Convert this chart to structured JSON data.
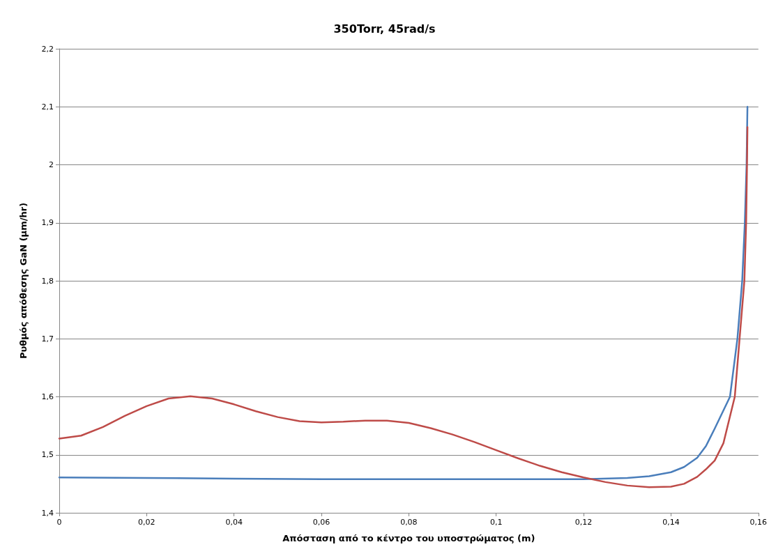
{
  "chart_data": {
    "type": "line",
    "title": "350Torr, 45rad/s",
    "xlabel": "Απόσταση από το κέντρο του υποστρώματος (m)",
    "ylabel": "Ρυθμός απόθεσης GaN (μm/hr)",
    "xlim": [
      0,
      0.16
    ],
    "ylim": [
      1.4,
      2.2
    ],
    "xticks": [
      0,
      {
        "value": 0.02,
        "label": "0,02"
      },
      {
        "value": 0.04,
        "label": "0,04"
      },
      {
        "value": 0.06,
        "label": "0,06"
      },
      {
        "value": 0.08,
        "label": "0,08"
      },
      {
        "value": 0.1,
        "label": "0,1"
      },
      {
        "value": 0.12,
        "label": "0,12"
      },
      {
        "value": 0.14,
        "label": "0,14"
      },
      {
        "value": 0.16,
        "label": "0,16"
      }
    ],
    "yticks": [
      {
        "value": 1.4,
        "label": "1,4"
      },
      {
        "value": 1.5,
        "label": "1,5"
      },
      {
        "value": 1.6,
        "label": "1,6"
      },
      {
        "value": 1.7,
        "label": "1,7"
      },
      {
        "value": 1.8,
        "label": "1,8"
      },
      {
        "value": 1.9,
        "label": "1,9"
      },
      2,
      {
        "value": 2.1,
        "label": "2,1"
      },
      {
        "value": 2.2,
        "label": "2,2"
      }
    ],
    "grid": "y",
    "marker": "none",
    "line_style": "solid",
    "series": [
      {
        "color": "#be4b48",
        "x": [
          0,
          0.005,
          0.01,
          0.015,
          0.02,
          0.025,
          0.03,
          0.035,
          0.04,
          0.045,
          0.05,
          0.055,
          0.06,
          0.065,
          0.07,
          0.075,
          0.08,
          0.085,
          0.09,
          0.095,
          0.1,
          0.105,
          0.11,
          0.115,
          0.12,
          0.125,
          0.13,
          0.135,
          0.14,
          0.143,
          0.146,
          0.148,
          0.15,
          0.152,
          0.1546,
          0.1557,
          0.1568,
          0.1572,
          0.1574,
          0.1575
        ],
        "values": [
          1.528,
          1.533,
          1.548,
          1.567,
          1.584,
          1.597,
          1.601,
          1.597,
          1.587,
          1.575,
          1.565,
          1.558,
          1.556,
          1.557,
          1.559,
          1.559,
          1.555,
          1.546,
          1.535,
          1.522,
          1.508,
          1.494,
          1.481,
          1.47,
          1.461,
          1.453,
          1.447,
          1.444,
          1.445,
          1.45,
          1.462,
          1.475,
          1.49,
          1.52,
          1.6,
          1.7,
          1.8,
          1.9,
          2.0,
          2.065
        ]
      },
      {
        "color": "#4a7ebb",
        "x": [
          0,
          0.02,
          0.04,
          0.06,
          0.08,
          0.1,
          0.12,
          0.13,
          0.135,
          0.14,
          0.143,
          0.146,
          0.148,
          0.15,
          0.1535,
          0.1552,
          0.1563,
          0.1569,
          0.1573,
          0.1575
        ],
        "values": [
          1.461,
          1.46,
          1.459,
          1.458,
          1.458,
          1.458,
          1.458,
          1.46,
          1.463,
          1.47,
          1.479,
          1.495,
          1.515,
          1.545,
          1.6,
          1.7,
          1.8,
          1.9,
          2.0,
          2.1
        ]
      }
    ]
  }
}
